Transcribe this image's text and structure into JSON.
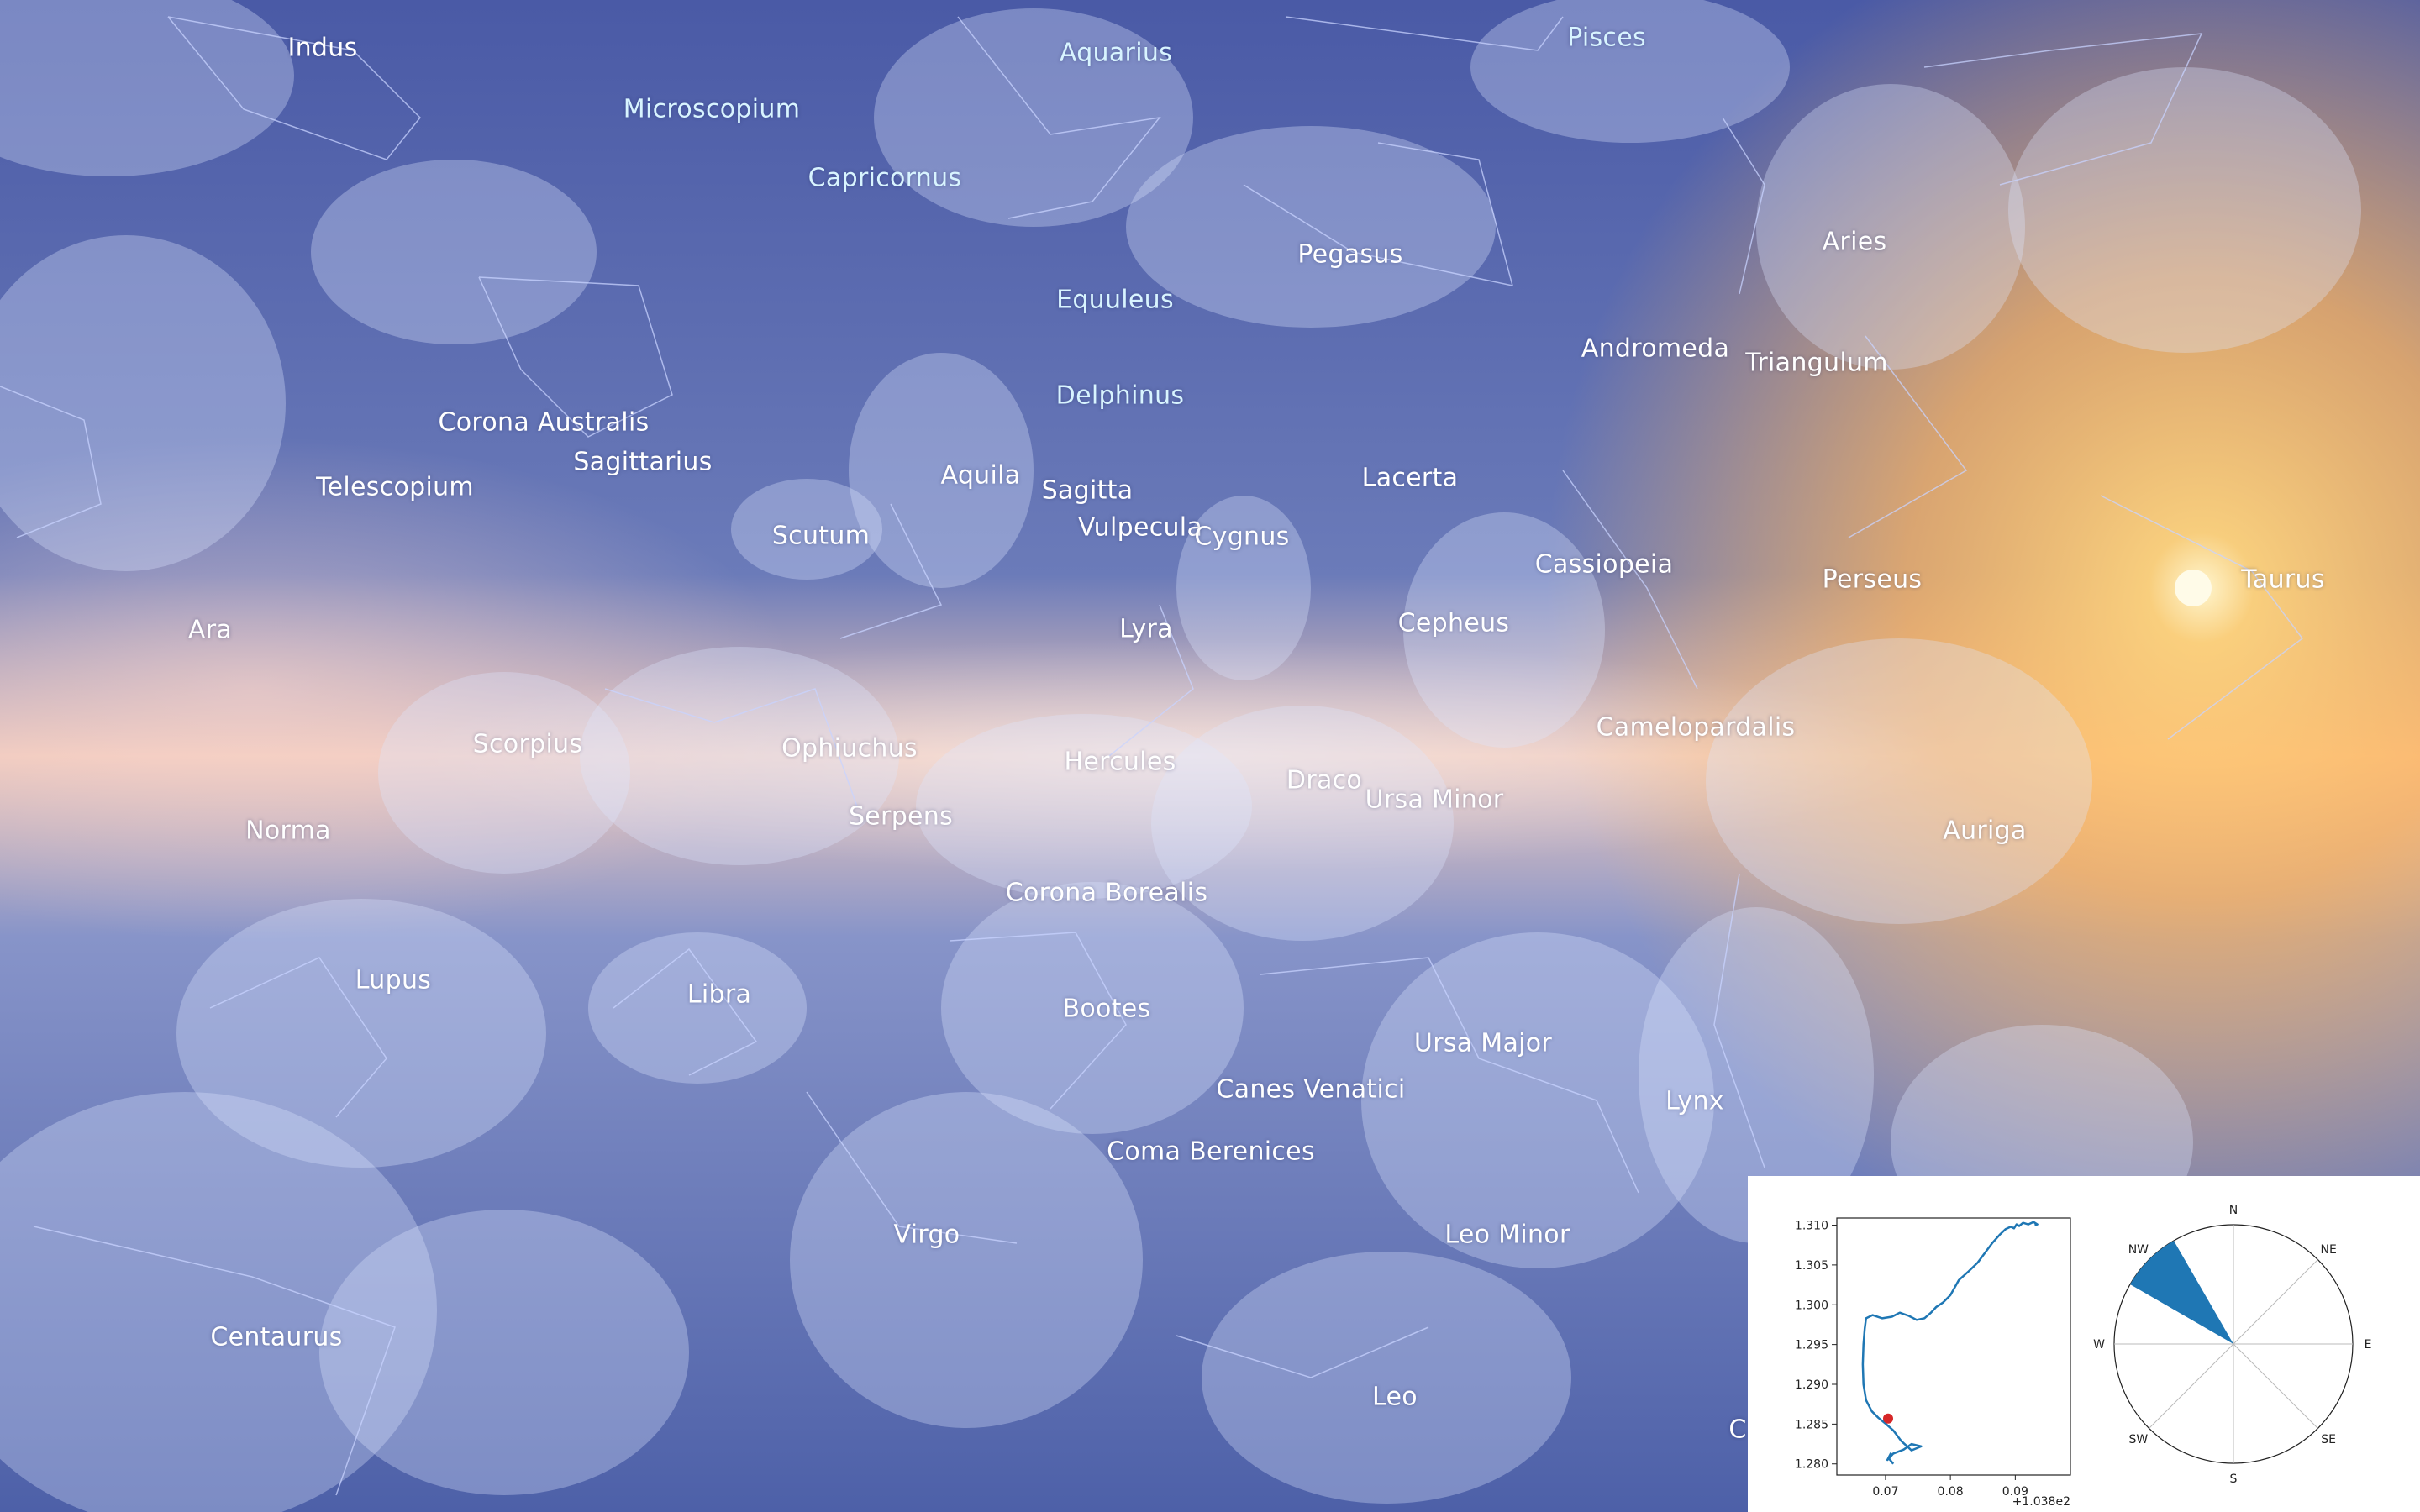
{
  "colors": {
    "sky_top": "#4a5ea8",
    "sky_band_warm": "#f3c9b8",
    "sun_glow": "#ffb85a",
    "label_cyan": "#d8f4ff",
    "label_white": "#ffffff",
    "track_line": "#1f77b4",
    "position_marker": "#d62728"
  },
  "constellations": [
    {
      "name": "Indus",
      "tone": "white"
    },
    {
      "name": "Aquarius",
      "tone": "cyan"
    },
    {
      "name": "Pisces",
      "tone": "cyan"
    },
    {
      "name": "Microscopium",
      "tone": "cyan"
    },
    {
      "name": "Capricornus",
      "tone": "cyan"
    },
    {
      "name": "Pegasus",
      "tone": "white"
    },
    {
      "name": "Aries",
      "tone": "white"
    },
    {
      "name": "Equuleus",
      "tone": "cyan"
    },
    {
      "name": "Andromeda",
      "tone": "white"
    },
    {
      "name": "Triangulum",
      "tone": "white"
    },
    {
      "name": "Delphinus",
      "tone": "cyan"
    },
    {
      "name": "Corona Australis",
      "tone": "white"
    },
    {
      "name": "Sagittarius",
      "tone": "white"
    },
    {
      "name": "Telescopium",
      "tone": "white"
    },
    {
      "name": "Aquila",
      "tone": "white"
    },
    {
      "name": "Sagitta",
      "tone": "white"
    },
    {
      "name": "Lacerta",
      "tone": "white"
    },
    {
      "name": "Vulpecula",
      "tone": "white"
    },
    {
      "name": "Cygnus",
      "tone": "white"
    },
    {
      "name": "Scutum",
      "tone": "white"
    },
    {
      "name": "Cassiopeia",
      "tone": "white"
    },
    {
      "name": "Perseus",
      "tone": "white"
    },
    {
      "name": "Taurus",
      "tone": "white"
    },
    {
      "name": "Ara",
      "tone": "white"
    },
    {
      "name": "Lyra",
      "tone": "white"
    },
    {
      "name": "Cepheus",
      "tone": "white"
    },
    {
      "name": "Scorpius",
      "tone": "white"
    },
    {
      "name": "Ophiuchus",
      "tone": "white"
    },
    {
      "name": "Camelopardalis",
      "tone": "white"
    },
    {
      "name": "Hercules",
      "tone": "white"
    },
    {
      "name": "Draco",
      "tone": "white"
    },
    {
      "name": "Ursa Minor",
      "tone": "white"
    },
    {
      "name": "Serpens",
      "tone": "white"
    },
    {
      "name": "Norma",
      "tone": "white"
    },
    {
      "name": "Auriga",
      "tone": "white"
    },
    {
      "name": "Corona Borealis",
      "tone": "white"
    },
    {
      "name": "Lupus",
      "tone": "white"
    },
    {
      "name": "Libra",
      "tone": "white"
    },
    {
      "name": "Bootes",
      "tone": "white"
    },
    {
      "name": "Ursa Major",
      "tone": "white"
    },
    {
      "name": "Lynx",
      "tone": "white"
    },
    {
      "name": "Canes Venatici",
      "tone": "white"
    },
    {
      "name": "Coma Berenices",
      "tone": "white"
    },
    {
      "name": "Virgo",
      "tone": "white"
    },
    {
      "name": "Leo Minor",
      "tone": "white"
    },
    {
      "name": "Centaurus",
      "tone": "white"
    },
    {
      "name": "Leo",
      "tone": "white"
    },
    {
      "name": "C",
      "tone": "white"
    }
  ],
  "chart_data": [
    {
      "type": "line",
      "title": "",
      "xlabel": "",
      "ylabel": "",
      "x_offset_label": "+1.038e2",
      "xlim": [
        0.0625,
        0.0985
      ],
      "ylim": [
        1.2786,
        1.3109
      ],
      "xticks": [
        "0.07",
        "0.08",
        "0.09"
      ],
      "xtick_values": [
        0.07,
        0.08,
        0.09
      ],
      "yticks": [
        "1.280",
        "1.285",
        "1.290",
        "1.295",
        "1.300",
        "1.305",
        "1.310"
      ],
      "ytick_values": [
        1.28,
        1.285,
        1.29,
        1.295,
        1.3,
        1.305,
        1.31
      ],
      "series": [
        {
          "name": "track",
          "x": [
            0.0712,
            0.0705,
            0.0708,
            0.0703,
            0.0712,
            0.0728,
            0.074,
            0.0755,
            0.074,
            0.0724,
            0.0712,
            0.0701,
            0.0689,
            0.0679,
            0.067,
            0.0666,
            0.0665,
            0.0666,
            0.0668,
            0.067,
            0.068,
            0.0695,
            0.071,
            0.0722,
            0.0736,
            0.0748,
            0.076,
            0.077,
            0.0778,
            0.0789,
            0.08,
            0.0813,
            0.0828,
            0.0842,
            0.0854,
            0.0865,
            0.0876,
            0.0885,
            0.0893,
            0.0898,
            0.0902,
            0.0906,
            0.0912,
            0.092,
            0.0928,
            0.0934,
            0.093
          ],
          "y": [
            1.28,
            1.2807,
            1.2813,
            1.2805,
            1.2813,
            1.2818,
            1.2825,
            1.2822,
            1.2817,
            1.2829,
            1.2842,
            1.285,
            1.2858,
            1.2866,
            1.288,
            1.29,
            1.2925,
            1.295,
            1.297,
            1.2983,
            1.2987,
            1.2983,
            1.2985,
            1.299,
            1.2986,
            1.2981,
            1.2983,
            1.299,
            1.2997,
            1.3003,
            1.3012,
            1.3031,
            1.3042,
            1.3053,
            1.3066,
            1.3078,
            1.3088,
            1.3095,
            1.3098,
            1.3096,
            1.3101,
            1.3099,
            1.3103,
            1.3101,
            1.3104,
            1.3101,
            1.31
          ]
        }
      ],
      "current_position": {
        "x": 0.0704,
        "y": 1.2857
      }
    },
    {
      "type": "polar",
      "title": "",
      "directions": [
        "N",
        "NE",
        "E",
        "SE",
        "S",
        "SW",
        "W",
        "NW"
      ],
      "highlighted_sector": {
        "label": "NW",
        "from_deg": 300,
        "to_deg": 330,
        "magnitude": 1.0
      }
    }
  ]
}
